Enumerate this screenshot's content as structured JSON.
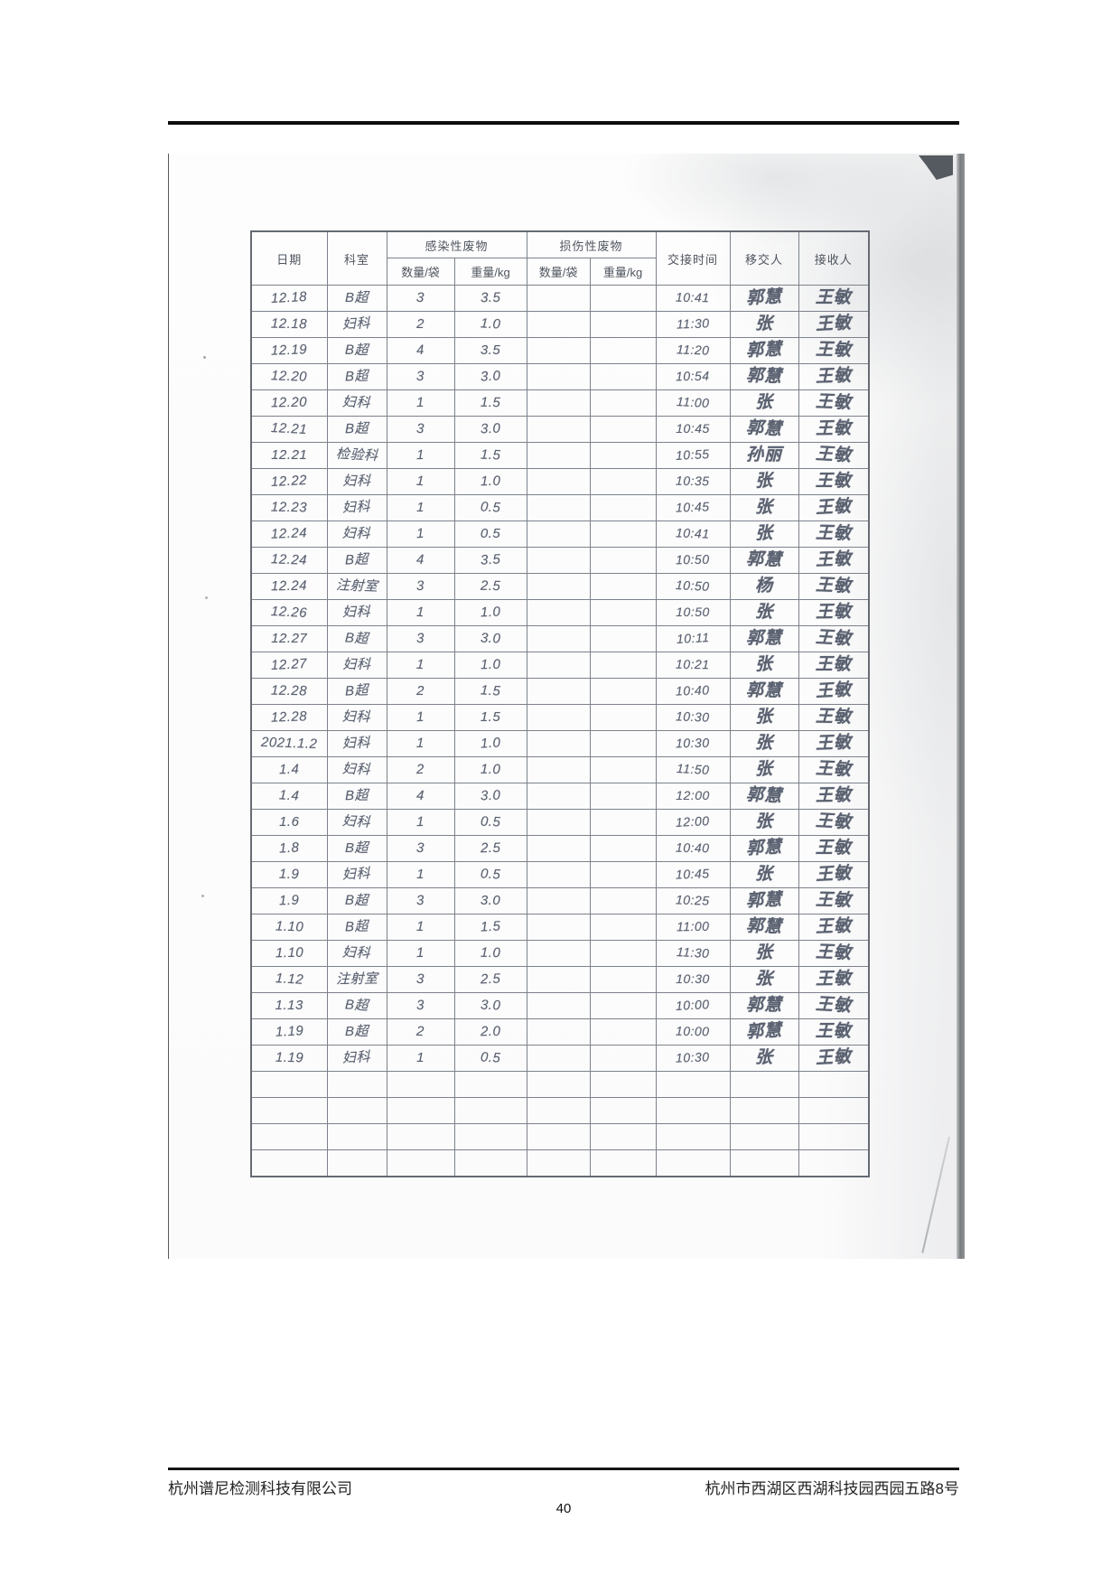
{
  "page": {
    "footer_company": "杭州谱尼检测科技有限公司",
    "footer_address": "杭州市西湖区西湖科技园西园五路8号",
    "page_number": "40"
  },
  "table": {
    "headers": {
      "date": "日期",
      "department": "科室",
      "infectious": "感染性废物",
      "sharps": "损伤性废物",
      "qty": "数量/袋",
      "weight": "重量/kg",
      "time": "交接时间",
      "transferor": "移交人",
      "receiver": "接收人"
    },
    "rows": [
      {
        "date": "12.18",
        "dept": "B超",
        "inf_qty": "3",
        "inf_wt": "3.5",
        "sharp_qty": "",
        "sharp_wt": "",
        "time": "10:41",
        "transferor": "郭慧",
        "receiver": "王敏"
      },
      {
        "date": "12.18",
        "dept": "妇科",
        "inf_qty": "2",
        "inf_wt": "1.0",
        "sharp_qty": "",
        "sharp_wt": "",
        "time": "11:30",
        "transferor": "张",
        "receiver": "王敏"
      },
      {
        "date": "12.19",
        "dept": "B超",
        "inf_qty": "4",
        "inf_wt": "3.5",
        "sharp_qty": "",
        "sharp_wt": "",
        "time": "11:20",
        "transferor": "郭慧",
        "receiver": "王敏"
      },
      {
        "date": "12.20",
        "dept": "B超",
        "inf_qty": "3",
        "inf_wt": "3.0",
        "sharp_qty": "",
        "sharp_wt": "",
        "time": "10:54",
        "transferor": "郭慧",
        "receiver": "王敏"
      },
      {
        "date": "12.20",
        "dept": "妇科",
        "inf_qty": "1",
        "inf_wt": "1.5",
        "sharp_qty": "",
        "sharp_wt": "",
        "time": "11:00",
        "transferor": "张",
        "receiver": "王敏"
      },
      {
        "date": "12.21",
        "dept": "B超",
        "inf_qty": "3",
        "inf_wt": "3.0",
        "sharp_qty": "",
        "sharp_wt": "",
        "time": "10:45",
        "transferor": "郭慧",
        "receiver": "王敏"
      },
      {
        "date": "12.21",
        "dept": "检验科",
        "inf_qty": "1",
        "inf_wt": "1.5",
        "sharp_qty": "",
        "sharp_wt": "",
        "time": "10:55",
        "transferor": "孙丽",
        "receiver": "王敏"
      },
      {
        "date": "12.22",
        "dept": "妇科",
        "inf_qty": "1",
        "inf_wt": "1.0",
        "sharp_qty": "",
        "sharp_wt": "",
        "time": "10:35",
        "transferor": "张",
        "receiver": "王敏"
      },
      {
        "date": "12.23",
        "dept": "妇科",
        "inf_qty": "1",
        "inf_wt": "0.5",
        "sharp_qty": "",
        "sharp_wt": "",
        "time": "10:45",
        "transferor": "张",
        "receiver": "王敏"
      },
      {
        "date": "12.24",
        "dept": "妇科",
        "inf_qty": "1",
        "inf_wt": "0.5",
        "sharp_qty": "",
        "sharp_wt": "",
        "time": "10:41",
        "transferor": "张",
        "receiver": "王敏"
      },
      {
        "date": "12.24",
        "dept": "B超",
        "inf_qty": "4",
        "inf_wt": "3.5",
        "sharp_qty": "",
        "sharp_wt": "",
        "time": "10:50",
        "transferor": "郭慧",
        "receiver": "王敏"
      },
      {
        "date": "12.24",
        "dept": "注射室",
        "inf_qty": "3",
        "inf_wt": "2.5",
        "sharp_qty": "",
        "sharp_wt": "",
        "time": "10:50",
        "transferor": "杨",
        "receiver": "王敏"
      },
      {
        "date": "12.26",
        "dept": "妇科",
        "inf_qty": "1",
        "inf_wt": "1.0",
        "sharp_qty": "",
        "sharp_wt": "",
        "time": "10:50",
        "transferor": "张",
        "receiver": "王敏"
      },
      {
        "date": "12.27",
        "dept": "B超",
        "inf_qty": "3",
        "inf_wt": "3.0",
        "sharp_qty": "",
        "sharp_wt": "",
        "time": "10:11",
        "transferor": "郭慧",
        "receiver": "王敏"
      },
      {
        "date": "12.27",
        "dept": "妇科",
        "inf_qty": "1",
        "inf_wt": "1.0",
        "sharp_qty": "",
        "sharp_wt": "",
        "time": "10:21",
        "transferor": "张",
        "receiver": "王敏"
      },
      {
        "date": "12.28",
        "dept": "B超",
        "inf_qty": "2",
        "inf_wt": "1.5",
        "sharp_qty": "",
        "sharp_wt": "",
        "time": "10:40",
        "transferor": "郭慧",
        "receiver": "王敏"
      },
      {
        "date": "12.28",
        "dept": "妇科",
        "inf_qty": "1",
        "inf_wt": "1.5",
        "sharp_qty": "",
        "sharp_wt": "",
        "time": "10:30",
        "transferor": "张",
        "receiver": "王敏"
      },
      {
        "date": "2021.1.2",
        "dept": "妇科",
        "inf_qty": "1",
        "inf_wt": "1.0",
        "sharp_qty": "",
        "sharp_wt": "",
        "time": "10:30",
        "transferor": "张",
        "receiver": "王敏"
      },
      {
        "date": "1.4",
        "dept": "妇科",
        "inf_qty": "2",
        "inf_wt": "1.0",
        "sharp_qty": "",
        "sharp_wt": "",
        "time": "11:50",
        "transferor": "张",
        "receiver": "王敏"
      },
      {
        "date": "1.4",
        "dept": "B超",
        "inf_qty": "4",
        "inf_wt": "3.0",
        "sharp_qty": "",
        "sharp_wt": "",
        "time": "12:00",
        "transferor": "郭慧",
        "receiver": "王敏"
      },
      {
        "date": "1.6",
        "dept": "妇科",
        "inf_qty": "1",
        "inf_wt": "0.5",
        "sharp_qty": "",
        "sharp_wt": "",
        "time": "12:00",
        "transferor": "张",
        "receiver": "王敏"
      },
      {
        "date": "1.8",
        "dept": "B超",
        "inf_qty": "3",
        "inf_wt": "2.5",
        "sharp_qty": "",
        "sharp_wt": "",
        "time": "10:40",
        "transferor": "郭慧",
        "receiver": "王敏"
      },
      {
        "date": "1.9",
        "dept": "妇科",
        "inf_qty": "1",
        "inf_wt": "0.5",
        "sharp_qty": "",
        "sharp_wt": "",
        "time": "10:45",
        "transferor": "张",
        "receiver": "王敏"
      },
      {
        "date": "1.9",
        "dept": "B超",
        "inf_qty": "3",
        "inf_wt": "3.0",
        "sharp_qty": "",
        "sharp_wt": "",
        "time": "10:25",
        "transferor": "郭慧",
        "receiver": "王敏"
      },
      {
        "date": "1.10",
        "dept": "B超",
        "inf_qty": "1",
        "inf_wt": "1.5",
        "sharp_qty": "",
        "sharp_wt": "",
        "time": "11:00",
        "transferor": "郭慧",
        "receiver": "王敏"
      },
      {
        "date": "1.10",
        "dept": "妇科",
        "inf_qty": "1",
        "inf_wt": "1.0",
        "sharp_qty": "",
        "sharp_wt": "",
        "time": "11:30",
        "transferor": "张",
        "receiver": "王敏"
      },
      {
        "date": "1.12",
        "dept": "注射室",
        "inf_qty": "3",
        "inf_wt": "2.5",
        "sharp_qty": "",
        "sharp_wt": "",
        "time": "10:30",
        "transferor": "张",
        "receiver": "王敏"
      },
      {
        "date": "1.13",
        "dept": "B超",
        "inf_qty": "3",
        "inf_wt": "3.0",
        "sharp_qty": "",
        "sharp_wt": "",
        "time": "10:00",
        "transferor": "郭慧",
        "receiver": "王敏"
      },
      {
        "date": "1.19",
        "dept": "B超",
        "inf_qty": "2",
        "inf_wt": "2.0",
        "sharp_qty": "",
        "sharp_wt": "",
        "time": "10:00",
        "transferor": "郭慧",
        "receiver": "王敏"
      },
      {
        "date": "1.19",
        "dept": "妇科",
        "inf_qty": "1",
        "inf_wt": "0.5",
        "sharp_qty": "",
        "sharp_wt": "",
        "time": "10:30",
        "transferor": "张",
        "receiver": "王敏"
      }
    ],
    "empty_row_count": 4
  }
}
